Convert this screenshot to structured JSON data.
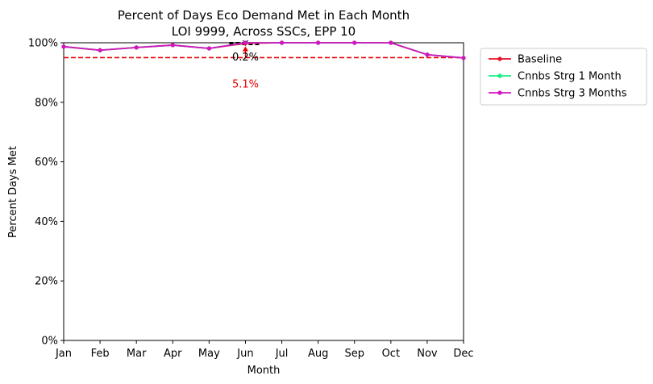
{
  "chart_data": {
    "type": "line",
    "title": "Percent of Days Eco Demand Met in Each Month",
    "subtitle": "LOI 9999, Across SSCs, EPP 10",
    "xlabel": "Month",
    "ylabel": "Percent Days Met",
    "categories": [
      "Jan",
      "Feb",
      "Mar",
      "Apr",
      "May",
      "Jun",
      "Jul",
      "Aug",
      "Sep",
      "Oct",
      "Nov",
      "Dec"
    ],
    "ylim": [
      0,
      100
    ],
    "yticks": [
      0,
      20,
      40,
      60,
      80,
      100
    ],
    "ytick_labels": [
      "0%",
      "20%",
      "40%",
      "60%",
      "80%",
      "100%"
    ],
    "grid": false,
    "legend_position": "outside-right",
    "series": [
      {
        "name": "Baseline",
        "color": "#e8112d",
        "values": [
          98.7,
          97.5,
          98.4,
          99.2,
          98.1,
          99.8,
          100,
          100,
          100,
          100,
          96.0,
          94.9
        ]
      },
      {
        "name": "Cnnbs Strg 1 Month",
        "color": "#10f080",
        "values": [
          98.7,
          97.5,
          98.4,
          99.2,
          98.1,
          100,
          100,
          100,
          100,
          100,
          96.0,
          94.9
        ]
      },
      {
        "name": "Cnnbs Strg 3 Months",
        "color": "#d415c0",
        "values": [
          98.7,
          97.5,
          98.4,
          99.2,
          98.1,
          100,
          100,
          100,
          100,
          100,
          96.0,
          94.9
        ]
      }
    ],
    "reference_line": {
      "value": 95,
      "color": "#e60000",
      "style": "dashed"
    },
    "annotations": [
      {
        "text": "0.2%",
        "month": "Jun",
        "color": "#000000"
      },
      {
        "text": "5.1%",
        "month": "Jun",
        "color": "#e60000"
      }
    ]
  }
}
